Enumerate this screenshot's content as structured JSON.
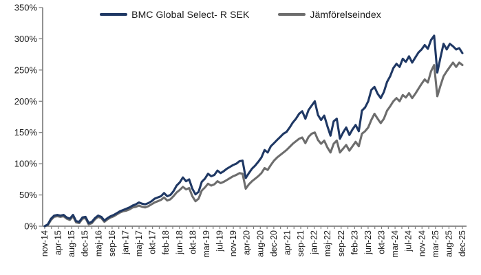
{
  "chart_data": {
    "type": "line",
    "title": "",
    "xlabel": "",
    "ylabel": "",
    "ylim": [
      0,
      350
    ],
    "y_tick_step_pct": 50,
    "y_tick_labels": [
      "0%",
      "50%",
      "100%",
      "150%",
      "200%",
      "250%",
      "300%",
      "350%"
    ],
    "grid": false,
    "legend_position": "top-center",
    "axis_color": "#7f7f7f",
    "text_color": "#1a1a1a",
    "x_tick_labels": [
      "nov-14",
      "apr-15",
      "aug-15",
      "dec-15",
      "maj-16",
      "sep-16",
      "jan-17",
      "maj-17",
      "okt-17",
      "feb-18",
      "jun-18",
      "okt-18",
      "mar-19",
      "jul-19",
      "nov-19",
      "apr-20",
      "aug-20",
      "dec-20",
      "apr-21",
      "sep-21",
      "jan-22",
      "maj-22",
      "sep-22",
      "feb-23",
      "jun-23",
      "okt-23",
      "mar-24",
      "jul-24",
      "nov-24",
      "mar-25",
      "aug-25",
      "dec-25"
    ],
    "series": [
      {
        "name": "BMC Global Select- R SEK",
        "color": "#1f3864",
        "unit": "%",
        "values": [
          0,
          3,
          12,
          17,
          18,
          17,
          18,
          14,
          12,
          18,
          8,
          7,
          14,
          15,
          5,
          7,
          13,
          17,
          15,
          9,
          13,
          16,
          18,
          21,
          24,
          26,
          28,
          30,
          33,
          35,
          38,
          36,
          35,
          37,
          40,
          44,
          46,
          48,
          53,
          48,
          50,
          56,
          65,
          70,
          78,
          72,
          75,
          60,
          51,
          55,
          71,
          76,
          84,
          80,
          82,
          89,
          85,
          88,
          92,
          95,
          98,
          100,
          104,
          105,
          77,
          85,
          92,
          97,
          103,
          110,
          122,
          118,
          128,
          133,
          138,
          143,
          148,
          151,
          158,
          166,
          172,
          180,
          184,
          172,
          186,
          193,
          200,
          178,
          170,
          177,
          160,
          145,
          168,
          172,
          140,
          150,
          158,
          146,
          155,
          162,
          152,
          185,
          190,
          200,
          218,
          223,
          212,
          205,
          215,
          231,
          240,
          253,
          260,
          255,
          268,
          263,
          272,
          262,
          270,
          278,
          283,
          290,
          284,
          298,
          305,
          246,
          270,
          292,
          283,
          292,
          288,
          283,
          285,
          277
        ]
      },
      {
        "name": "Jämförelseindex",
        "color": "#6d6d6d",
        "unit": "%",
        "values": [
          0,
          2,
          10,
          15,
          16,
          15,
          16,
          12,
          10,
          16,
          6,
          5,
          12,
          13,
          3,
          5,
          11,
          15,
          13,
          7,
          11,
          14,
          16,
          19,
          22,
          24,
          25,
          27,
          30,
          31,
          33,
          31,
          30,
          32,
          35,
          38,
          40,
          42,
          46,
          41,
          43,
          48,
          54,
          58,
          63,
          59,
          61,
          48,
          40,
          44,
          57,
          62,
          68,
          65,
          67,
          72,
          69,
          71,
          74,
          77,
          80,
          82,
          85,
          84,
          60,
          67,
          72,
          76,
          80,
          85,
          93,
          90,
          98,
          105,
          110,
          114,
          118,
          122,
          127,
          132,
          136,
          140,
          142,
          133,
          143,
          148,
          150,
          138,
          132,
          137,
          126,
          118,
          132,
          137,
          118,
          124,
          130,
          121,
          128,
          135,
          128,
          148,
          152,
          158,
          170,
          180,
          172,
          165,
          172,
          185,
          192,
          200,
          205,
          200,
          210,
          206,
          213,
          205,
          212,
          220,
          228,
          235,
          230,
          248,
          258,
          208,
          225,
          240,
          248,
          255,
          262,
          255,
          262,
          258
        ]
      }
    ]
  }
}
